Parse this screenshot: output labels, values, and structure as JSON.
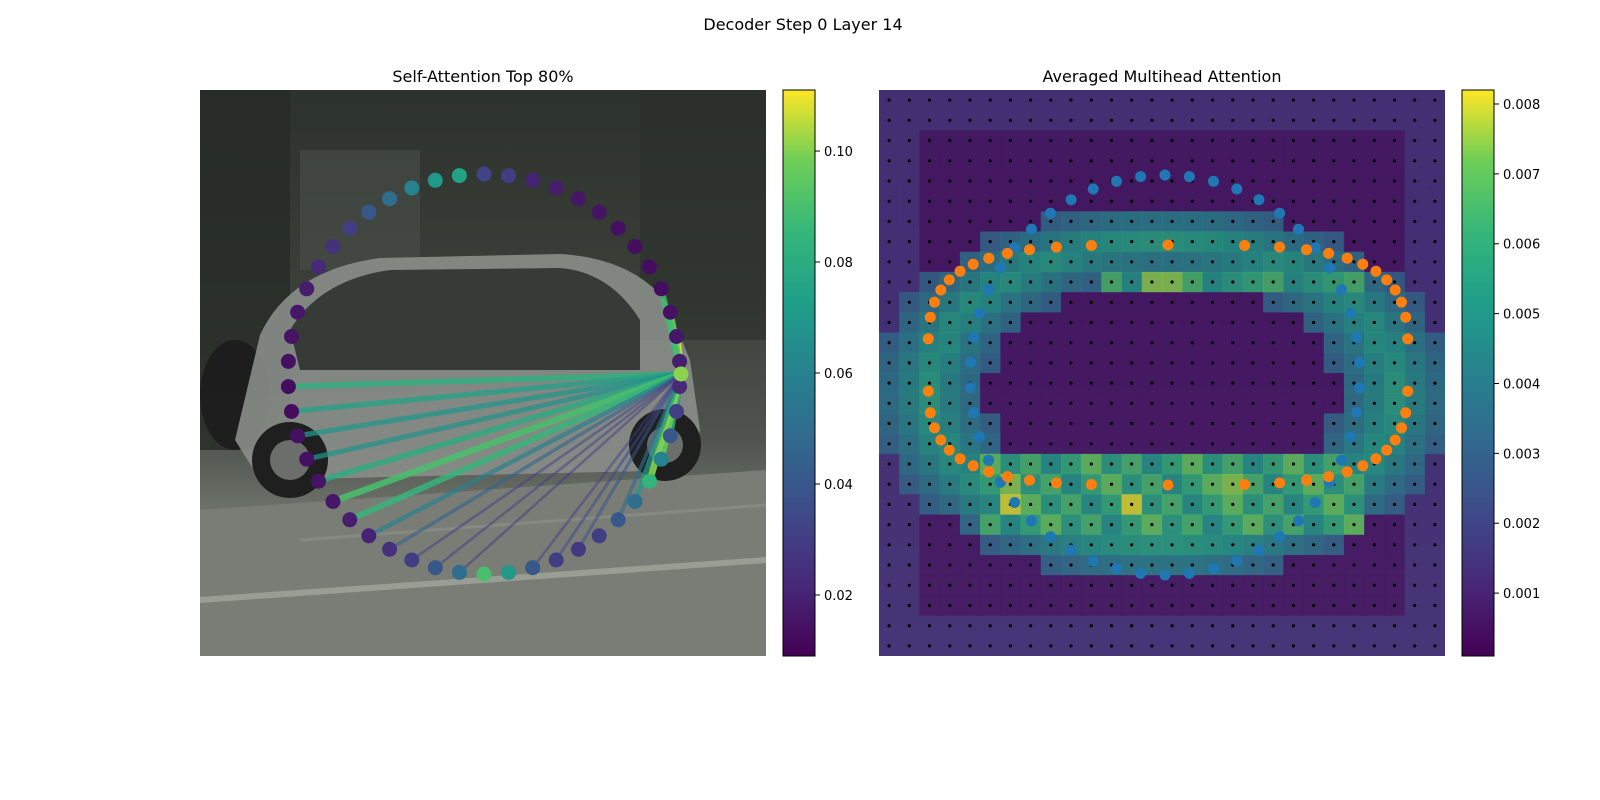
{
  "figure": {
    "suptitle": "Decoder Step 0 Layer 14"
  },
  "chart_data": [
    {
      "type": "scatter",
      "title": "Self-Attention Top 80%",
      "background": "street scene photo with grey hatchback car",
      "query_point": 16,
      "points": [
        [
          270,
          290
        ],
        [
          270,
          270
        ],
        [
          270,
          250
        ],
        [
          270,
          230
        ],
        [
          270,
          210
        ],
        [
          270,
          190
        ],
        [
          270,
          170
        ],
        [
          270,
          150
        ],
        [
          270,
          130
        ],
        [
          270,
          110
        ],
        [
          270,
          90
        ],
        [
          270,
          70
        ],
        [
          270,
          50
        ],
        [
          270,
          30
        ],
        [
          270,
          10
        ],
        [
          270,
          350
        ],
        [
          270,
          330
        ],
        [
          270,
          310
        ],
        [
          270,
          290
        ]
      ],
      "colorbar": {
        "ticks": [
          0.02,
          0.04,
          0.06,
          0.08,
          0.1
        ],
        "min": 0.009,
        "max": 0.111,
        "colormap": "viridis"
      }
    },
    {
      "type": "heatmap",
      "title": "Averaged Multihead Attention",
      "background": "street scene photo with grey hatchback car overlaid by attention heatmap",
      "series": [
        {
          "color": "#1f77b4"
        },
        {
          "color": "#ff7f0e"
        }
      ],
      "colorbar": {
        "ticks": [
          0.001,
          0.002,
          0.003,
          0.004,
          0.005,
          0.006,
          0.007,
          0.008
        ],
        "min": 0.0001,
        "max": 0.0082,
        "colormap": "viridis"
      }
    }
  ],
  "left_point_values": [
    0.032,
    0.03,
    0.02,
    0.018,
    0.016,
    0.015,
    0.014,
    0.013,
    0.013,
    0.013,
    0.014,
    0.016,
    0.018,
    0.022,
    0.03,
    0.04,
    0.06,
    0.085,
    0.05,
    0.04,
    0.03,
    0.028,
    0.03,
    0.04,
    0.07,
    0.09,
    0.05,
    0.04,
    0.03,
    0.025,
    0.02,
    0.018,
    0.016,
    0.015,
    0.014,
    0.014,
    0.013,
    0.013,
    0.014,
    0.015,
    0.016,
    0.018,
    0.022,
    0.025,
    0.03,
    0.04,
    0.05,
    0.06,
    0.07,
    0.075
  ],
  "left_edge_values": [
    0.105,
    0.11,
    0.108,
    0.095,
    0.088,
    0.082,
    0.075,
    0.07,
    0.068,
    0.08,
    0.09,
    0.085,
    0.06,
    0.045,
    0.03,
    0.03,
    0.028,
    0.06,
    0.08,
    0.095,
    0.1,
    0.07,
    0.05,
    0.04,
    0.035,
    0.03
  ],
  "right_heat_peak": 0.0082
}
